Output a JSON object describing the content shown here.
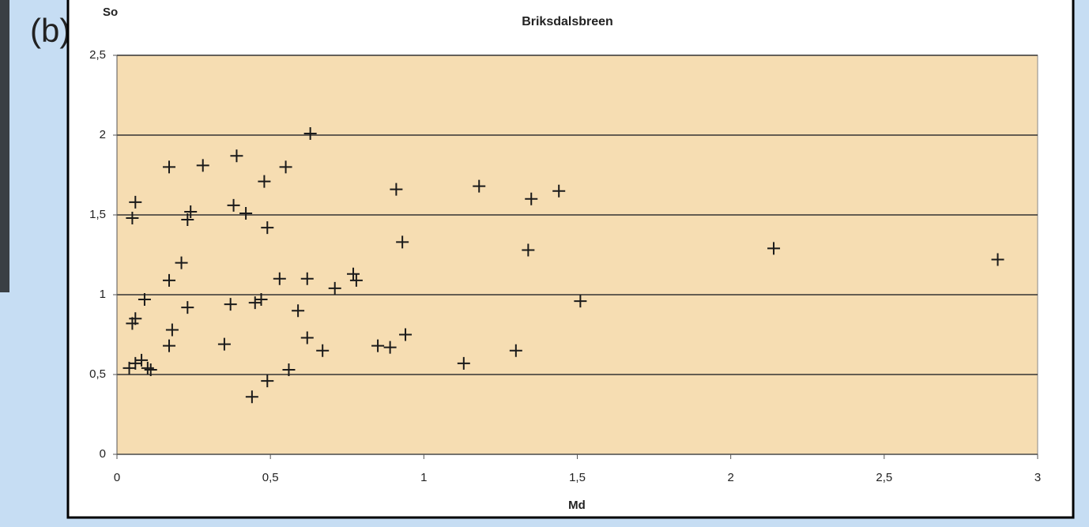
{
  "panel_label": "(b)",
  "chart_data": {
    "type": "scatter",
    "title": "Briksdalsbreen",
    "x_label": "Md",
    "y_label": "So",
    "color": "#1a1a1a",
    "grid": true,
    "xlim": [
      0,
      3
    ],
    "ylim": [
      0,
      2.5
    ],
    "xticks": [
      0,
      {
        "value": 0.5,
        "label": "0,5"
      },
      1,
      {
        "value": 1.5,
        "label": "1,5"
      },
      2,
      {
        "value": 2.5,
        "label": "2,5"
      },
      3
    ],
    "yticks": [
      0,
      {
        "value": 0.5,
        "label": "0,5"
      },
      1,
      {
        "value": 1.5,
        "label": "1,5"
      },
      2,
      {
        "value": 2.5,
        "label": "2,5"
      }
    ],
    "x": [
      0.04,
      0.05,
      0.06,
      0.05,
      0.06,
      0.06,
      0.08,
      0.09,
      0.1,
      0.11,
      0.17,
      0.17,
      0.17,
      0.18,
      0.21,
      0.23,
      0.23,
      0.24,
      0.28,
      0.35,
      0.37,
      0.39,
      0.38,
      0.42,
      0.44,
      0.45,
      0.47,
      0.48,
      0.49,
      0.49,
      0.53,
      0.55,
      0.56,
      0.59,
      0.62,
      0.62,
      0.63,
      0.67,
      0.71,
      0.77,
      0.78,
      0.85,
      0.89,
      0.91,
      0.93,
      0.94,
      1.13,
      1.18,
      1.3,
      1.34,
      1.35,
      1.44,
      1.51,
      2.14,
      2.87
    ],
    "values": [
      0.54,
      0.82,
      0.85,
      1.48,
      1.58,
      0.57,
      0.59,
      0.97,
      0.54,
      0.53,
      1.8,
      1.09,
      0.68,
      0.78,
      1.2,
      0.92,
      1.47,
      1.52,
      1.81,
      0.69,
      0.94,
      1.87,
      1.56,
      1.51,
      0.36,
      0.95,
      0.97,
      1.71,
      0.46,
      1.42,
      1.1,
      1.8,
      0.53,
      0.9,
      0.73,
      1.1,
      2.01,
      0.65,
      1.04,
      1.13,
      1.09,
      0.68,
      0.67,
      1.66,
      1.33,
      0.75,
      0.57,
      1.68,
      0.65,
      1.28,
      1.6,
      1.65,
      0.96,
      1.29,
      1.22
    ]
  }
}
